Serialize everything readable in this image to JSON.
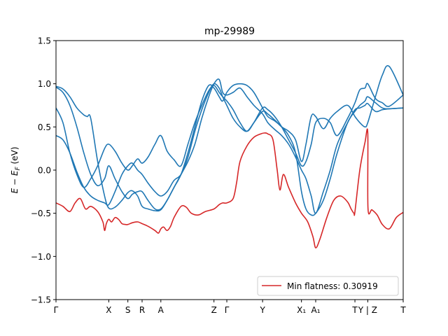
{
  "chart_data": {
    "type": "line",
    "title": "mp-29989",
    "xlabel": "",
    "ylabel": "E − E_F (eV)",
    "ylabel_parts": {
      "e": "E",
      "sub_prefix": "E",
      "sub": "F",
      "text": " (eV)"
    },
    "ylim": [
      -1.5,
      1.5
    ],
    "xlim": [
      0,
      1
    ],
    "yticks": [
      -1.5,
      -1.0,
      -0.5,
      0.0,
      0.5,
      1.0,
      1.5
    ],
    "ytick_labels": [
      "−1.5",
      "−1.0",
      "−0.5",
      "0.0",
      "0.5",
      "1.0",
      "1.5"
    ],
    "xticks": [
      {
        "x": 0.0,
        "label": "Γ"
      },
      {
        "x": 0.152,
        "label": "X"
      },
      {
        "x": 0.207,
        "label": "S"
      },
      {
        "x": 0.248,
        "label": "R"
      },
      {
        "x": 0.302,
        "label": "A"
      },
      {
        "x": 0.455,
        "label": "Z"
      },
      {
        "x": 0.492,
        "label": "Γ"
      },
      {
        "x": 0.595,
        "label": "Y"
      },
      {
        "x": 0.707,
        "label": "X₁"
      },
      {
        "x": 0.748,
        "label": "A₁"
      },
      {
        "x": 0.861,
        "label": "T"
      },
      {
        "x": 0.898,
        "label": "Y | Z"
      },
      {
        "x": 1.0,
        "label": "T"
      }
    ],
    "legend": {
      "location": "lower-right",
      "label": "Min flatness: 0.30919"
    },
    "colors": {
      "band": "#1f77b4",
      "flat_band": "#d62728"
    },
    "series": [
      {
        "style": "band",
        "x": [
          0.0,
          0.02,
          0.04,
          0.06,
          0.08,
          0.09,
          0.1,
          0.12,
          0.14,
          0.152,
          0.17,
          0.19,
          0.207,
          0.22,
          0.235,
          0.248,
          0.265,
          0.285,
          0.302,
          0.32,
          0.34,
          0.36,
          0.38,
          0.4,
          0.42,
          0.44,
          0.455,
          0.47,
          0.48,
          0.492,
          0.51,
          0.53,
          0.55,
          0.57,
          0.595,
          0.61,
          0.63,
          0.65,
          0.67,
          0.69,
          0.707,
          0.72,
          0.735,
          0.748,
          0.77,
          0.79,
          0.81,
          0.84,
          0.861,
          0.875,
          0.89,
          0.898,
          0.92,
          0.94,
          0.96,
          1.0
        ],
        "y": [
          0.97,
          0.94,
          0.85,
          0.72,
          0.64,
          0.62,
          0.6,
          0.1,
          -0.3,
          -0.44,
          -0.43,
          -0.35,
          -0.26,
          -0.24,
          -0.3,
          -0.42,
          -0.45,
          -0.47,
          -0.46,
          -0.35,
          -0.2,
          -0.05,
          0.1,
          0.3,
          0.6,
          0.85,
          1.0,
          1.05,
          0.9,
          0.87,
          0.9,
          0.95,
          0.85,
          0.75,
          0.65,
          0.55,
          0.47,
          0.4,
          0.3,
          0.15,
          0.0,
          -0.1,
          -0.3,
          -0.5,
          -0.25,
          0.0,
          0.3,
          0.55,
          0.7,
          0.72,
          0.75,
          0.77,
          0.68,
          0.7,
          0.71,
          0.72
        ]
      },
      {
        "style": "band",
        "x": [
          0.0,
          0.02,
          0.04,
          0.06,
          0.08,
          0.1,
          0.12,
          0.14,
          0.152,
          0.17,
          0.19,
          0.207,
          0.22,
          0.235,
          0.248,
          0.265,
          0.285,
          0.302,
          0.32,
          0.34,
          0.36,
          0.38,
          0.4,
          0.42,
          0.44,
          0.455,
          0.47,
          0.48,
          0.492,
          0.51,
          0.53,
          0.55,
          0.57,
          0.595,
          0.61,
          0.63,
          0.65,
          0.67,
          0.69,
          0.707,
          0.72,
          0.735,
          0.748,
          0.77,
          0.79,
          0.81,
          0.84,
          0.861,
          0.875,
          0.89,
          0.898,
          0.92,
          0.94,
          0.96,
          1.0
        ],
        "y": [
          0.96,
          0.9,
          0.75,
          0.5,
          0.2,
          -0.05,
          -0.18,
          -0.1,
          0.05,
          -0.1,
          -0.25,
          -0.33,
          -0.28,
          -0.25,
          -0.25,
          -0.35,
          -0.45,
          -0.45,
          -0.35,
          -0.2,
          -0.05,
          0.2,
          0.5,
          0.8,
          0.98,
          0.95,
          0.85,
          0.8,
          0.9,
          0.98,
          1.0,
          0.98,
          0.9,
          0.72,
          0.62,
          0.57,
          0.5,
          0.4,
          0.2,
          -0.25,
          -0.45,
          -0.52,
          -0.5,
          -0.35,
          -0.1,
          0.2,
          0.55,
          0.68,
          0.75,
          0.8,
          0.85,
          0.78,
          0.72,
          0.71,
          0.72
        ]
      },
      {
        "style": "band",
        "x": [
          0.0,
          0.02,
          0.04,
          0.06,
          0.08,
          0.1,
          0.12,
          0.14,
          0.152,
          0.17,
          0.19,
          0.207,
          0.22,
          0.235,
          0.248,
          0.265,
          0.285,
          0.302,
          0.32,
          0.34,
          0.36,
          0.38,
          0.4,
          0.42,
          0.44,
          0.455,
          0.47,
          0.48,
          0.492,
          0.51,
          0.53,
          0.55,
          0.57,
          0.595,
          0.61,
          0.63,
          0.65,
          0.67,
          0.69,
          0.707,
          0.72,
          0.735,
          0.748,
          0.77,
          0.79,
          0.81,
          0.84,
          0.861,
          0.875,
          0.89,
          0.898,
          0.92,
          0.94,
          0.96,
          1.0
        ],
        "y": [
          0.72,
          0.55,
          0.2,
          -0.05,
          -0.2,
          -0.1,
          0.05,
          0.25,
          0.3,
          0.22,
          0.08,
          0.0,
          0.05,
          0.13,
          0.08,
          0.15,
          0.3,
          0.4,
          0.22,
          0.12,
          0.05,
          0.3,
          0.55,
          0.75,
          0.92,
          0.98,
          0.9,
          0.85,
          0.8,
          0.7,
          0.55,
          0.45,
          0.55,
          0.72,
          0.7,
          0.62,
          0.5,
          0.35,
          0.2,
          0.05,
          0.1,
          0.3,
          0.55,
          0.6,
          0.55,
          0.4,
          0.6,
          0.78,
          0.93,
          0.95,
          1.0,
          0.83,
          0.78,
          0.74,
          0.87
        ]
      },
      {
        "style": "band",
        "x": [
          0.0,
          0.02,
          0.04,
          0.06,
          0.08,
          0.1,
          0.12,
          0.14,
          0.152,
          0.17,
          0.19,
          0.207,
          0.22,
          0.235,
          0.248,
          0.265,
          0.285,
          0.302,
          0.32,
          0.34,
          0.36,
          0.38,
          0.4,
          0.42,
          0.44,
          0.455,
          0.47,
          0.48,
          0.492,
          0.51,
          0.53,
          0.55,
          0.57,
          0.595,
          0.61,
          0.63,
          0.65,
          0.67,
          0.69,
          0.707,
          0.72,
          0.735,
          0.748,
          0.77,
          0.79,
          0.81,
          0.84,
          0.861,
          0.875,
          0.89,
          0.898,
          0.92,
          0.94,
          0.96,
          1.0
        ],
        "y": [
          0.4,
          0.35,
          0.2,
          -0.02,
          -0.2,
          -0.3,
          -0.35,
          -0.38,
          -0.4,
          -0.25,
          -0.05,
          0.05,
          0.08,
          0.0,
          -0.05,
          -0.15,
          -0.25,
          -0.3,
          -0.25,
          -0.12,
          -0.05,
          0.15,
          0.45,
          0.7,
          0.9,
          1.0,
          0.95,
          0.85,
          0.75,
          0.6,
          0.5,
          0.45,
          0.55,
          0.68,
          0.65,
          0.58,
          0.5,
          0.45,
          0.35,
          0.1,
          0.3,
          0.62,
          0.62,
          0.48,
          0.6,
          0.68,
          0.75,
          0.62,
          0.55,
          0.5,
          0.55,
          0.85,
          1.1,
          1.2,
          0.87
        ]
      },
      {
        "style": "flat_band",
        "x": [
          0.0,
          0.02,
          0.04,
          0.055,
          0.07,
          0.085,
          0.1,
          0.12,
          0.135,
          0.14,
          0.145,
          0.152,
          0.16,
          0.17,
          0.18,
          0.19,
          0.2,
          0.207,
          0.22,
          0.235,
          0.248,
          0.265,
          0.285,
          0.295,
          0.302,
          0.31,
          0.32,
          0.33,
          0.34,
          0.36,
          0.375,
          0.39,
          0.41,
          0.43,
          0.455,
          0.47,
          0.48,
          0.492,
          0.51,
          0.52,
          0.53,
          0.55,
          0.57,
          0.59,
          0.6,
          0.61,
          0.625,
          0.637,
          0.645,
          0.655,
          0.67,
          0.69,
          0.707,
          0.725,
          0.74,
          0.748,
          0.76,
          0.78,
          0.8,
          0.82,
          0.84,
          0.85,
          0.858,
          0.861,
          0.875,
          0.89,
          0.898,
          0.8985,
          0.91,
          0.925,
          0.94,
          0.96,
          0.98,
          1.0
        ],
        "y": [
          -0.38,
          -0.42,
          -0.48,
          -0.38,
          -0.33,
          -0.45,
          -0.42,
          -0.48,
          -0.6,
          -0.7,
          -0.62,
          -0.57,
          -0.6,
          -0.55,
          -0.57,
          -0.62,
          -0.63,
          -0.63,
          -0.61,
          -0.6,
          -0.62,
          -0.65,
          -0.7,
          -0.73,
          -0.68,
          -0.66,
          -0.7,
          -0.65,
          -0.55,
          -0.42,
          -0.43,
          -0.5,
          -0.52,
          -0.48,
          -0.45,
          -0.4,
          -0.38,
          -0.38,
          -0.33,
          -0.15,
          0.1,
          0.28,
          0.38,
          0.42,
          0.43,
          0.42,
          0.35,
          0.0,
          -0.23,
          -0.05,
          -0.2,
          -0.38,
          -0.5,
          -0.6,
          -0.77,
          -0.9,
          -0.8,
          -0.55,
          -0.35,
          -0.3,
          -0.37,
          -0.45,
          -0.5,
          -0.48,
          0.0,
          0.32,
          0.43,
          -0.44,
          -0.46,
          -0.52,
          -0.63,
          -0.68,
          -0.55,
          -0.49
        ]
      }
    ]
  }
}
